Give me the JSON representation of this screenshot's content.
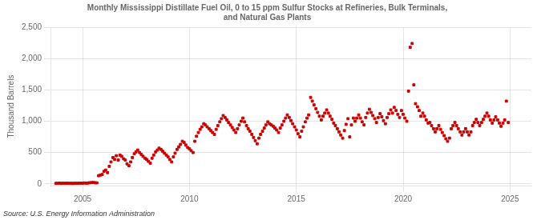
{
  "chart_data": {
    "type": "scatter",
    "title": "Monthly Mississippi Distillate Fuel Oil, 0 to 15 ppm Sulfur Stocks at Refineries, Bulk Terminals,\nand Natural Gas Plants",
    "ylabel": "Thousand Barrels",
    "annotations": [
      "Source: U.S. Energy Information Administration"
    ],
    "color": "#cc0000",
    "marker": "square",
    "grid": true,
    "xlim": [
      2003.5,
      2026.0
    ],
    "ylim": [
      -30,
      2500
    ],
    "xticks": [
      2005,
      2010,
      2015,
      2020,
      2025
    ],
    "yticks": [
      0,
      500,
      {
        "value": 1000,
        "label": "1,000"
      },
      {
        "value": 1500,
        "label": "1,500"
      },
      {
        "value": 2000,
        "label": "2,000"
      },
      {
        "value": 2500,
        "label": "2,500"
      }
    ],
    "x": [
      2003.75,
      2003.83,
      2003.92,
      2004.0,
      2004.08,
      2004.17,
      2004.25,
      2004.33,
      2004.42,
      2004.5,
      2004.58,
      2004.67,
      2004.75,
      2004.83,
      2004.92,
      2005.0,
      2005.08,
      2005.17,
      2005.25,
      2005.33,
      2005.42,
      2005.5,
      2005.58,
      2005.67,
      2005.75,
      2005.83,
      2005.92,
      2006.0,
      2006.08,
      2006.17,
      2006.25,
      2006.33,
      2006.42,
      2006.5,
      2006.58,
      2006.67,
      2006.75,
      2006.83,
      2006.92,
      2007.0,
      2007.08,
      2007.17,
      2007.25,
      2007.33,
      2007.42,
      2007.5,
      2007.58,
      2007.67,
      2007.75,
      2007.83,
      2007.92,
      2008.0,
      2008.08,
      2008.17,
      2008.25,
      2008.33,
      2008.42,
      2008.5,
      2008.58,
      2008.67,
      2008.75,
      2008.83,
      2008.92,
      2009.0,
      2009.08,
      2009.17,
      2009.25,
      2009.33,
      2009.42,
      2009.5,
      2009.58,
      2009.67,
      2009.75,
      2009.83,
      2009.92,
      2010.0,
      2010.08,
      2010.17,
      2010.25,
      2010.33,
      2010.42,
      2010.5,
      2010.58,
      2010.67,
      2010.75,
      2010.83,
      2010.92,
      2011.0,
      2011.08,
      2011.17,
      2011.25,
      2011.33,
      2011.42,
      2011.5,
      2011.58,
      2011.67,
      2011.75,
      2011.83,
      2011.92,
      2012.0,
      2012.08,
      2012.17,
      2012.25,
      2012.33,
      2012.42,
      2012.5,
      2012.58,
      2012.67,
      2012.75,
      2012.83,
      2012.92,
      2013.0,
      2013.08,
      2013.17,
      2013.25,
      2013.33,
      2013.42,
      2013.5,
      2013.58,
      2013.67,
      2013.75,
      2013.83,
      2013.92,
      2014.0,
      2014.08,
      2014.17,
      2014.25,
      2014.33,
      2014.42,
      2014.5,
      2014.58,
      2014.67,
      2014.75,
      2014.83,
      2014.92,
      2015.0,
      2015.08,
      2015.17,
      2015.25,
      2015.33,
      2015.42,
      2015.5,
      2015.58,
      2015.67,
      2015.75,
      2015.83,
      2015.92,
      2016.0,
      2016.08,
      2016.17,
      2016.25,
      2016.33,
      2016.42,
      2016.5,
      2016.58,
      2016.67,
      2016.75,
      2016.83,
      2016.92,
      2017.0,
      2017.08,
      2017.17,
      2017.25,
      2017.33,
      2017.42,
      2017.5,
      2017.58,
      2017.67,
      2017.75,
      2017.83,
      2017.92,
      2018.0,
      2018.08,
      2018.17,
      2018.25,
      2018.33,
      2018.42,
      2018.5,
      2018.58,
      2018.67,
      2018.75,
      2018.83,
      2018.92,
      2019.0,
      2019.08,
      2019.17,
      2019.25,
      2019.33,
      2019.42,
      2019.5,
      2019.58,
      2019.67,
      2019.75,
      2019.83,
      2019.92,
      2020.0,
      2020.08,
      2020.17,
      2020.25,
      2020.33,
      2020.42,
      2020.5,
      2020.58,
      2020.67,
      2020.75,
      2020.83,
      2020.92,
      2021.0,
      2021.08,
      2021.17,
      2021.25,
      2021.33,
      2021.42,
      2021.5,
      2021.58,
      2021.67,
      2021.75,
      2021.83,
      2021.92,
      2022.0,
      2022.08,
      2022.17,
      2022.25,
      2022.33,
      2022.42,
      2022.5,
      2022.58,
      2022.67,
      2022.75,
      2022.83,
      2022.92,
      2023.0,
      2023.08,
      2023.17,
      2023.25,
      2023.33,
      2023.42,
      2023.5,
      2023.58,
      2023.67,
      2023.75,
      2023.83,
      2023.92,
      2024.0,
      2024.08,
      2024.17,
      2024.25,
      2024.33,
      2024.42,
      2024.5,
      2024.58,
      2024.67,
      2024.75,
      2024.83,
      2024.92
    ],
    "values": [
      8,
      10,
      12,
      8,
      10,
      9,
      11,
      10,
      9,
      8,
      8,
      10,
      9,
      11,
      12,
      10,
      15,
      12,
      14,
      18,
      20,
      22,
      18,
      16,
      130,
      140,
      150,
      200,
      220,
      180,
      280,
      350,
      420,
      390,
      450,
      380,
      460,
      440,
      400,
      380,
      320,
      290,
      350,
      420,
      480,
      510,
      540,
      500,
      470,
      440,
      410,
      390,
      360,
      330,
      410,
      460,
      510,
      540,
      570,
      550,
      520,
      490,
      460,
      430,
      390,
      350,
      430,
      490,
      550,
      590,
      630,
      680,
      660,
      620,
      580,
      560,
      530,
      500,
      680,
      760,
      820,
      870,
      910,
      960,
      940,
      910,
      880,
      850,
      820,
      790,
      870,
      930,
      990,
      1040,
      1090,
      1060,
      1020,
      980,
      940,
      900,
      860,
      820,
      880,
      940,
      1000,
      1050,
      990,
      930,
      880,
      840,
      790,
      740,
      690,
      640,
      730,
      790,
      840,
      890,
      940,
      990,
      960,
      940,
      920,
      890,
      860,
      820,
      890,
      940,
      1000,
      1050,
      1100,
      1060,
      1010,
      960,
      910,
      860,
      800,
      750,
      840,
      910,
      990,
      1050,
      1100,
      1380,
      1320,
      1260,
      1200,
      1140,
      1080,
      1020,
      1080,
      1130,
      1180,
      1130,
      1080,
      1030,
      970,
      930,
      880,
      830,
      780,
      730,
      850,
      950,
      1040,
      750,
      940,
      1050,
      1000,
      1050,
      1100,
      1050,
      990,
      940,
      1060,
      1130,
      1190,
      1140,
      1090,
      1040,
      980,
      1060,
      1120,
      1070,
      1010,
      960,
      1060,
      1120,
      1180,
      1130,
      1220,
      1170,
      1110,
      1060,
      1170,
      1110,
      1050,
      1000,
      1480,
      2180,
      2240,
      1580,
      1280,
      1230,
      1170,
      1080,
      1130,
      1080,
      1020,
      970,
      980,
      930,
      880,
      830,
      880,
      930,
      870,
      820,
      770,
      720,
      680,
      730,
      880,
      930,
      980,
      930,
      880,
      830,
      780,
      830,
      880,
      830,
      780,
      830,
      930,
      980,
      1030,
      980,
      930,
      980,
      1030,
      1080,
      1130,
      1080,
      1020,
      970,
      1020,
      1070,
      1020,
      970,
      920,
      970,
      1020,
      1320,
      980
    ]
  }
}
